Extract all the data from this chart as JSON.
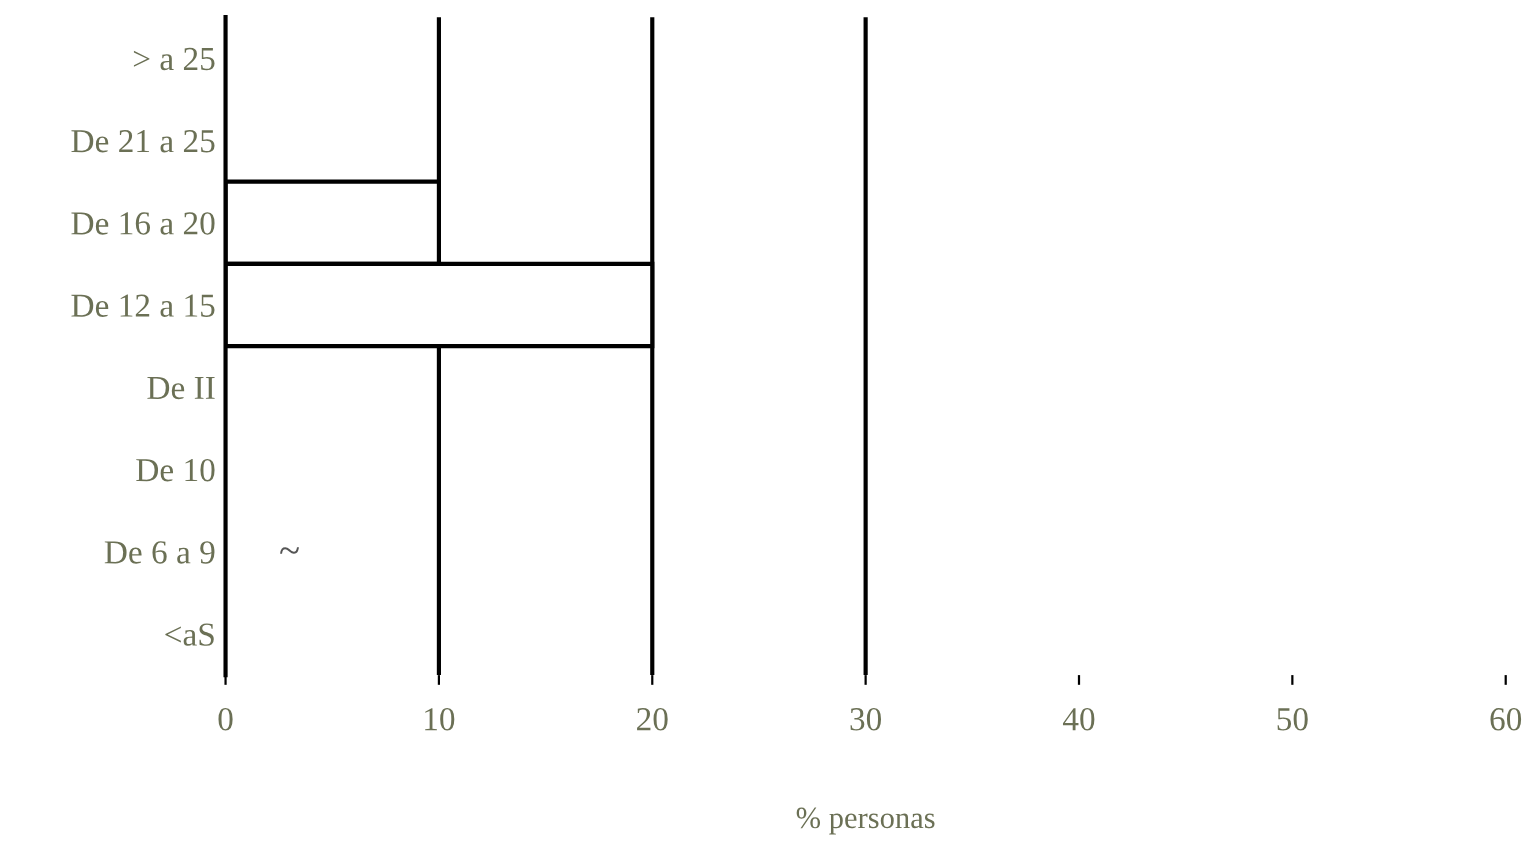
{
  "chart_data": {
    "type": "bar",
    "orientation": "horizontal",
    "xlabel": "% personas",
    "categories": [
      "> a 25",
      "De 21 a 25",
      "De 16 a 20",
      "De 12 a 15",
      "De II",
      "De 10",
      "De 6 a 9",
      "<aS"
    ],
    "series": [
      {
        "color": "#ffffff",
        "values": [
          null,
          null,
          10,
          20,
          null,
          null,
          null,
          null
        ]
      }
    ],
    "xlim": [
      0,
      60
    ],
    "xticks": [
      0,
      10,
      20,
      30,
      40,
      50,
      60
    ],
    "ref_lines": [
      {
        "axis": "x",
        "value": 10,
        "color": "#000000"
      },
      {
        "axis": "x",
        "value": 20,
        "color": "#000000"
      },
      {
        "axis": "x",
        "value": 30,
        "color": "#000000"
      }
    ],
    "annotations": [
      "~"
    ],
    "grid": false
  }
}
